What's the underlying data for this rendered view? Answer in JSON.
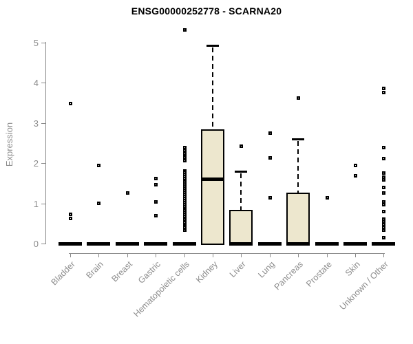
{
  "title": "ENSG00000252778 - SCARNA20",
  "colors": {
    "box_fill": "#EDE7CE",
    "box_border": "#000000",
    "median": "#000000",
    "outlier_border": "#000000",
    "axis_line": "#8A8A8A",
    "axis_text": "#8C8C8C",
    "title_text": "#000000",
    "background": "#FFFFFF"
  },
  "chart_data": {
    "type": "boxplot",
    "title": "ENSG00000252778 - SCARNA20",
    "xlabel": "",
    "ylabel": "Expression",
    "ylim": [
      0,
      5
    ],
    "yticks": [
      0,
      1,
      2,
      3,
      4,
      5
    ],
    "grid": false,
    "legend": "none",
    "categories": [
      "Bladder",
      "Brain",
      "Breast",
      "Gastric",
      "Hematopoietic cells",
      "Kidney",
      "Liver",
      "Lung",
      "Pancreas",
      "Prostate",
      "Skin",
      "Unknown / Other"
    ],
    "series": [
      {
        "category": "Bladder",
        "whisker_low": 0,
        "q1": 0,
        "median": 0,
        "q3": 0,
        "whisker_high": 0,
        "outliers": [
          3.48,
          0.74,
          0.63
        ]
      },
      {
        "category": "Brain",
        "whisker_low": 0,
        "q1": 0,
        "median": 0,
        "q3": 0,
        "whisker_high": 0,
        "outliers": [
          1.95,
          1.01
        ]
      },
      {
        "category": "Breast",
        "whisker_low": 0,
        "q1": 0,
        "median": 0,
        "q3": 0,
        "whisker_high": 0,
        "outliers": [
          1.27
        ]
      },
      {
        "category": "Gastric",
        "whisker_low": 0,
        "q1": 0,
        "median": 0,
        "q3": 0,
        "whisker_high": 0,
        "outliers": [
          1.62,
          1.47,
          1.05,
          0.7
        ]
      },
      {
        "category": "Hematopoietic cells",
        "whisker_low": 0,
        "q1": 0,
        "median": 0,
        "q3": 0,
        "whisker_high": 0,
        "outliers": [
          5.31,
          2.4,
          2.33,
          2.24,
          2.16,
          2.07,
          1.82,
          1.78,
          1.73,
          1.68,
          1.63,
          1.58,
          1.53,
          1.48,
          1.43,
          1.38,
          1.33,
          1.28,
          1.23,
          1.18,
          1.13,
          1.08,
          1.03,
          0.98,
          0.93,
          0.88,
          0.83,
          0.78,
          0.73,
          0.68,
          0.62,
          0.53,
          0.45,
          0.41,
          0.34
        ]
      },
      {
        "category": "Kidney",
        "whisker_low": 0,
        "q1": 0,
        "median": 1.61,
        "q3": 2.83,
        "whisker_high": 4.93,
        "outliers": []
      },
      {
        "category": "Liver",
        "whisker_low": 0,
        "q1": 0,
        "median": 0,
        "q3": 0.84,
        "whisker_high": 1.79,
        "outliers": [
          2.43
        ]
      },
      {
        "category": "Lung",
        "whisker_low": 0,
        "q1": 0,
        "median": 0,
        "q3": 0,
        "whisker_high": 0,
        "outliers": [
          2.75,
          2.13,
          1.14
        ]
      },
      {
        "category": "Pancreas",
        "whisker_low": 0,
        "q1": 0,
        "median": 0,
        "q3": 1.26,
        "whisker_high": 2.59,
        "outliers": [
          3.62
        ]
      },
      {
        "category": "Prostate",
        "whisker_low": 0,
        "q1": 0,
        "median": 0,
        "q3": 0,
        "whisker_high": 0,
        "outliers": [
          1.15
        ]
      },
      {
        "category": "Skin",
        "whisker_low": 0,
        "q1": 0,
        "median": 0,
        "q3": 0,
        "whisker_high": 0,
        "outliers": [
          1.95,
          1.69
        ]
      },
      {
        "category": "Unknown / Other",
        "whisker_low": 0,
        "q1": 0,
        "median": 0,
        "q3": 0,
        "whisker_high": 0,
        "outliers": [
          3.86,
          3.76,
          2.39,
          2.12,
          1.76,
          1.66,
          1.59,
          1.41,
          1.26,
          1.04,
          0.97,
          0.81,
          0.62,
          0.55,
          0.48,
          0.41,
          0.34,
          0.15
        ]
      }
    ]
  }
}
